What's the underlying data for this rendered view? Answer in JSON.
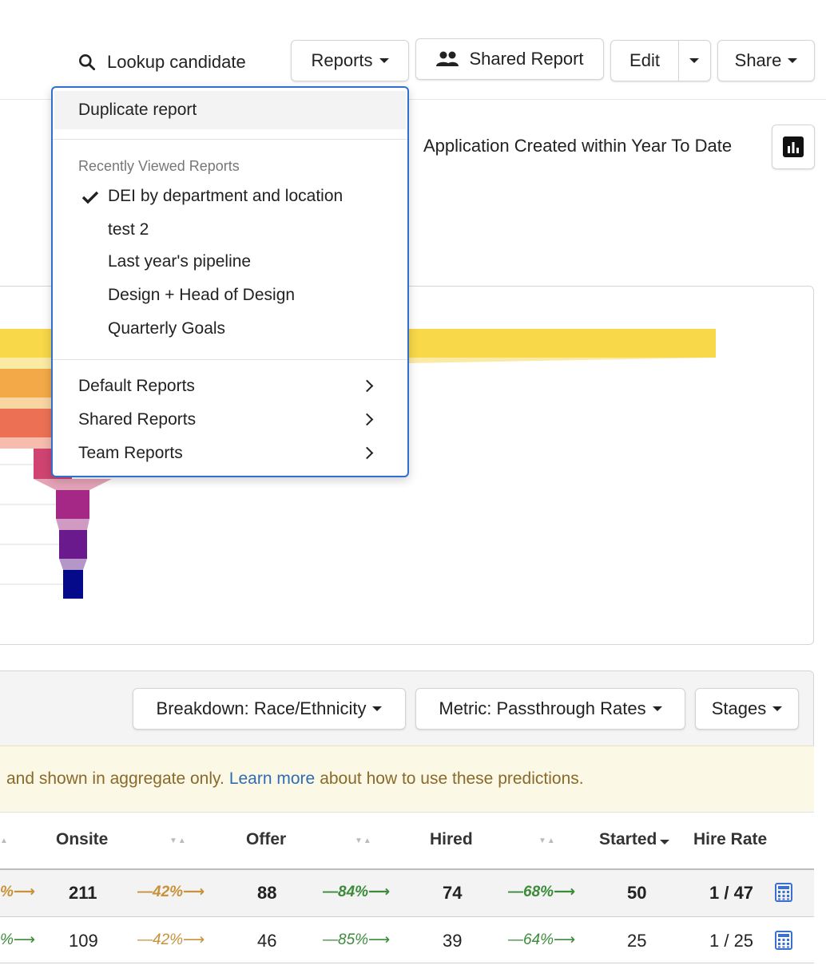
{
  "header": {
    "lookup_label": "Lookup candidate",
    "reports_label": "Reports",
    "shared_report_label": "Shared Report",
    "edit_label": "Edit",
    "share_label": "Share"
  },
  "filter_summary": "Application Created within Year To Date",
  "menu": {
    "duplicate_label": "Duplicate report",
    "recent_header": "Recently Viewed Reports",
    "recent_items": [
      "DEI by department and location",
      "test 2",
      "Last year's pipeline",
      "Design + Head of Design",
      "Quarterly Goals"
    ],
    "groups": [
      "Default Reports",
      "Shared Reports",
      "Team Reports"
    ]
  },
  "chart_data": {
    "type": "bar",
    "categories": [],
    "values": [],
    "funnel_colors": [
      "#f8d748",
      "#f3a947",
      "#ec7154",
      "#cf4470",
      "#a52886",
      "#6a1a8c",
      "#050a8a"
    ]
  },
  "controls": {
    "breakdown_label": "Breakdown: Race/Ethnicity",
    "metric_label": "Metric: Passthrough Rates",
    "stages_label": "Stages"
  },
  "banner": {
    "text_before": "and shown in aggregate only.",
    "link_text": "Learn more",
    "text_after": "about how to use these predictions."
  },
  "table": {
    "columns": [
      "Onsite",
      "Offer",
      "Hired",
      "Started",
      "Hire Rate"
    ],
    "rows": [
      {
        "lead_pct": "%",
        "onsite": "211",
        "p1": "42%",
        "offer": "88",
        "p2": "84%",
        "hired": "74",
        "p3": "68%",
        "started": "50",
        "rate": "1 / 47"
      },
      {
        "lead_pct": "%",
        "onsite": "109",
        "p1": "42%",
        "offer": "46",
        "p2": "85%",
        "hired": "39",
        "p3": "64%",
        "started": "25",
        "rate": "1 / 25"
      }
    ]
  }
}
